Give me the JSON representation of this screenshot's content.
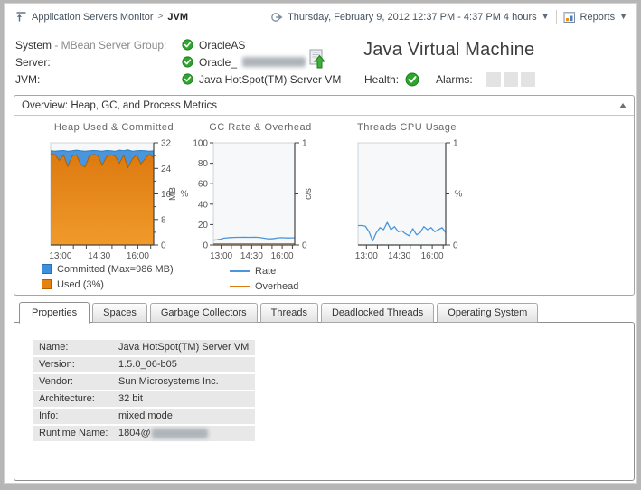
{
  "header": {
    "breadcrumb": {
      "parent": "Application Servers Monitor",
      "separator": ">",
      "current": "JVM"
    },
    "time_range": "Thursday, February 9, 2012 12:37 PM - 4:37 PM 4 hours",
    "reports_label": "Reports"
  },
  "info": {
    "rows": [
      {
        "label_primary": "System ",
        "label_secondary": "- MBean Server Group:",
        "value": "OracleAS",
        "redacted": false
      },
      {
        "label_primary": "Server:",
        "label_secondary": "",
        "value": "Oracle_",
        "redacted": true
      },
      {
        "label_primary": "JVM:",
        "label_secondary": "",
        "value": "Java HotSpot(TM) Server VM",
        "redacted": false
      }
    ]
  },
  "summary": {
    "title": "Java Virtual Machine",
    "health_label": "Health:",
    "alarms_label": "Alarms:",
    "alarm_box_count": 3
  },
  "overview": {
    "title": "Overview: Heap, GC, and Process Metrics"
  },
  "chart_data": [
    {
      "type": "area",
      "title": "Heap Used & Committed",
      "x_tick_labels": [
        "13:00",
        "14:30",
        "16:00"
      ],
      "y_axis": {
        "side": "right",
        "label": "MB",
        "ticks": [
          0,
          8,
          16,
          24,
          32
        ],
        "min": 0,
        "max": 32
      },
      "series": [
        {
          "name": "Committed",
          "axis": "right",
          "color": "#4a96dd",
          "values": [
            29.5,
            29.4,
            29.5,
            29.6,
            29.4,
            29.5,
            29.7,
            29.5,
            29.4,
            29.5,
            29.6,
            29.5,
            29.4,
            29.6,
            29.5,
            29.4,
            29.7,
            29.5,
            29.8,
            29.4,
            29.5,
            29.6,
            29.5,
            29.4,
            29.5
          ]
        },
        {
          "name": "Used",
          "axis": "right",
          "color": "#e8820e",
          "values": [
            28.6,
            28.3,
            26.5,
            28.2,
            24.6,
            27.9,
            28.3,
            25.2,
            24.4,
            27.8,
            28.4,
            28.0,
            25.0,
            27.6,
            28.3,
            27.9,
            25.6,
            28.1,
            24.3,
            26.9,
            28.2,
            25.4,
            27.0,
            28.5,
            27.3
          ]
        }
      ],
      "legend": [
        {
          "label": "Committed (Max=986 MB)",
          "color": "#3f8fdf",
          "border": "#2a6db3",
          "swatch": "square"
        },
        {
          "label": "Used (3%)",
          "color": "#e8820e",
          "border": "#b05f00",
          "swatch": "square"
        }
      ]
    },
    {
      "type": "line",
      "title": "GC Rate & Overhead",
      "x_tick_labels": [
        "13:00",
        "14:30",
        "16:00"
      ],
      "left_axis": {
        "label": "%",
        "ticks": [
          0,
          20,
          40,
          60,
          80,
          100
        ],
        "min": 0,
        "max": 100
      },
      "right_axis": {
        "label": "c/s",
        "ticks": [
          0,
          1
        ],
        "min": 0,
        "max": 1
      },
      "series": [
        {
          "name": "Rate",
          "axis": "left",
          "color": "#4a96dd",
          "values": [
            4.8,
            5.0,
            5.6,
            6.6,
            7.0,
            7.3,
            7.4,
            7.5,
            7.5,
            7.6,
            7.5,
            7.5,
            7.6,
            7.5,
            7.2,
            6.6,
            6.1,
            6.0,
            6.4,
            7.0,
            7.2,
            7.1,
            6.8,
            7.0,
            7.1
          ]
        },
        {
          "name": "Overhead",
          "axis": "right",
          "color": "#d97b0e",
          "values": [
            0.012,
            0.012
          ]
        }
      ],
      "legend": [
        {
          "label": "Rate",
          "color": "#4a96dd",
          "swatch": "line"
        },
        {
          "label": "Overhead",
          "color": "#d97b0e",
          "swatch": "line"
        }
      ]
    },
    {
      "type": "line",
      "title": "Threads CPU Usage",
      "x_tick_labels": [
        "13:00",
        "14:30",
        "16:00"
      ],
      "right_axis": {
        "label": "%",
        "ticks": [
          0,
          1
        ],
        "min": 0,
        "max": 1
      },
      "series": [
        {
          "name": "CPU",
          "axis": "right",
          "color": "#4a96dd",
          "values": [
            0.19,
            0.19,
            0.185,
            0.13,
            0.04,
            0.12,
            0.17,
            0.15,
            0.22,
            0.15,
            0.18,
            0.13,
            0.14,
            0.11,
            0.09,
            0.16,
            0.1,
            0.12,
            0.18,
            0.15,
            0.17,
            0.13,
            0.15,
            0.17,
            0.12
          ]
        }
      ],
      "legend": []
    }
  ],
  "tabs": [
    {
      "label": "Properties",
      "active": true
    },
    {
      "label": "Spaces",
      "active": false
    },
    {
      "label": "Garbage Collectors",
      "active": false
    },
    {
      "label": "Threads",
      "active": false
    },
    {
      "label": "Deadlocked Threads",
      "active": false
    },
    {
      "label": "Operating System",
      "active": false
    }
  ],
  "properties": {
    "rows": [
      {
        "label": "Name:",
        "value": "Java HotSpot(TM) Server VM",
        "redacted": false
      },
      {
        "label": "Version:",
        "value": "1.5.0_06-b05",
        "redacted": false
      },
      {
        "label": "Vendor:",
        "value": "Sun Microsystems Inc.",
        "redacted": false
      },
      {
        "label": "Architecture:",
        "value": "32 bit",
        "redacted": false
      },
      {
        "label": "Info:",
        "value": "mixed mode",
        "redacted": false
      },
      {
        "label": "Runtime Name:",
        "value": "1804@",
        "redacted": true
      }
    ]
  },
  "colors": {
    "accent_blue": "#4a96dd",
    "accent_orange": "#e8820e",
    "health_green": "#2ea52e",
    "axis_text": "#555555"
  }
}
